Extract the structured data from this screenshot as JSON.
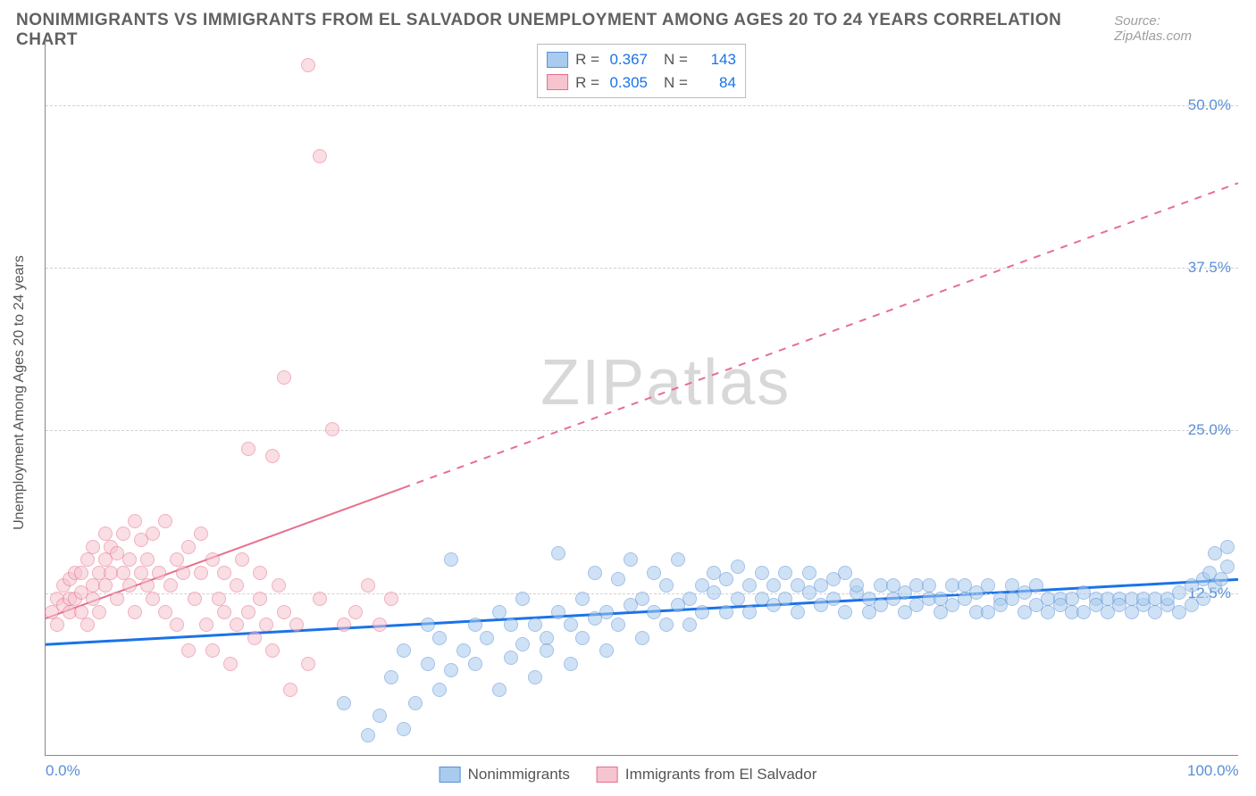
{
  "title": "NONIMMIGRANTS VS IMMIGRANTS FROM EL SALVADOR UNEMPLOYMENT AMONG AGES 20 TO 24 YEARS CORRELATION CHART",
  "source": "Source: ZipAtlas.com",
  "ylabel": "Unemployment Among Ages 20 to 24 years",
  "watermark": "ZIPatlas",
  "chart": {
    "type": "scatter",
    "xlim": [
      0,
      100
    ],
    "ylim": [
      0,
      55
    ],
    "xtick_labels": [
      {
        "pos": 0,
        "label": "0.0%"
      },
      {
        "pos": 100,
        "label": "100.0%"
      }
    ],
    "ytick_labels": [
      {
        "pos": 12.5,
        "label": "12.5%"
      },
      {
        "pos": 25.0,
        "label": "25.0%"
      },
      {
        "pos": 37.5,
        "label": "37.5%"
      },
      {
        "pos": 50.0,
        "label": "50.0%"
      }
    ],
    "grid_color": "#d0d0d0",
    "background_color": "#ffffff",
    "axis_color": "#888888",
    "point_radius": 8,
    "point_opacity": 0.55,
    "series": [
      {
        "name": "Nonimmigrants",
        "color_fill": "#a9cbed",
        "color_stroke": "#5a8fd6",
        "R": "0.367",
        "N": "143",
        "trend": {
          "x1": 0,
          "y1": 8.5,
          "x2": 100,
          "y2": 13.5,
          "solid_until_x": 100,
          "color": "#1a73e8",
          "width": 3
        },
        "points": [
          [
            25,
            4
          ],
          [
            27,
            1.5
          ],
          [
            28,
            3
          ],
          [
            29,
            6
          ],
          [
            30,
            2
          ],
          [
            30,
            8
          ],
          [
            31,
            4
          ],
          [
            32,
            7
          ],
          [
            32,
            10
          ],
          [
            33,
            5
          ],
          [
            33,
            9
          ],
          [
            34,
            6.5
          ],
          [
            34,
            15
          ],
          [
            35,
            8
          ],
          [
            36,
            10
          ],
          [
            36,
            7
          ],
          [
            37,
            9
          ],
          [
            38,
            5
          ],
          [
            38,
            11
          ],
          [
            39,
            7.5
          ],
          [
            39,
            10
          ],
          [
            40,
            8.5
          ],
          [
            40,
            12
          ],
          [
            41,
            6
          ],
          [
            41,
            10
          ],
          [
            42,
            9
          ],
          [
            42,
            8
          ],
          [
            43,
            11
          ],
          [
            43,
            15.5
          ],
          [
            44,
            10
          ],
          [
            44,
            7
          ],
          [
            45,
            9
          ],
          [
            45,
            12
          ],
          [
            46,
            10.5
          ],
          [
            46,
            14
          ],
          [
            47,
            11
          ],
          [
            47,
            8
          ],
          [
            48,
            10
          ],
          [
            48,
            13.5
          ],
          [
            49,
            11.5
          ],
          [
            49,
            15
          ],
          [
            50,
            12
          ],
          [
            50,
            9
          ],
          [
            51,
            11
          ],
          [
            51,
            14
          ],
          [
            52,
            10
          ],
          [
            52,
            13
          ],
          [
            53,
            11.5
          ],
          [
            53,
            15
          ],
          [
            54,
            12
          ],
          [
            54,
            10
          ],
          [
            55,
            13
          ],
          [
            55,
            11
          ],
          [
            56,
            12.5
          ],
          [
            56,
            14
          ],
          [
            57,
            11
          ],
          [
            57,
            13.5
          ],
          [
            58,
            12
          ],
          [
            58,
            14.5
          ],
          [
            59,
            11
          ],
          [
            59,
            13
          ],
          [
            60,
            12
          ],
          [
            60,
            14
          ],
          [
            61,
            11.5
          ],
          [
            61,
            13
          ],
          [
            62,
            12
          ],
          [
            62,
            14
          ],
          [
            63,
            13
          ],
          [
            63,
            11
          ],
          [
            64,
            12.5
          ],
          [
            64,
            14
          ],
          [
            65,
            13
          ],
          [
            65,
            11.5
          ],
          [
            66,
            12
          ],
          [
            66,
            13.5
          ],
          [
            67,
            11
          ],
          [
            67,
            14
          ],
          [
            68,
            12.5
          ],
          [
            68,
            13
          ],
          [
            69,
            11
          ],
          [
            69,
            12
          ],
          [
            70,
            13
          ],
          [
            70,
            11.5
          ],
          [
            71,
            12
          ],
          [
            71,
            13
          ],
          [
            72,
            11
          ],
          [
            72,
            12.5
          ],
          [
            73,
            13
          ],
          [
            73,
            11.5
          ],
          [
            74,
            12
          ],
          [
            74,
            13
          ],
          [
            75,
            11
          ],
          [
            75,
            12
          ],
          [
            76,
            13
          ],
          [
            76,
            11.5
          ],
          [
            77,
            12
          ],
          [
            77,
            13
          ],
          [
            78,
            11
          ],
          [
            78,
            12.5
          ],
          [
            79,
            13
          ],
          [
            79,
            11
          ],
          [
            80,
            12
          ],
          [
            80,
            11.5
          ],
          [
            81,
            13
          ],
          [
            81,
            12
          ],
          [
            82,
            11
          ],
          [
            82,
            12.5
          ],
          [
            83,
            11.5
          ],
          [
            83,
            13
          ],
          [
            84,
            12
          ],
          [
            84,
            11
          ],
          [
            85,
            12
          ],
          [
            85,
            11.5
          ],
          [
            86,
            12
          ],
          [
            86,
            11
          ],
          [
            87,
            12.5
          ],
          [
            87,
            11
          ],
          [
            88,
            12
          ],
          [
            88,
            11.5
          ],
          [
            89,
            12
          ],
          [
            89,
            11
          ],
          [
            90,
            12
          ],
          [
            90,
            11.5
          ],
          [
            91,
            12
          ],
          [
            91,
            11
          ],
          [
            92,
            11.5
          ],
          [
            92,
            12
          ],
          [
            93,
            11
          ],
          [
            93,
            12
          ],
          [
            94,
            11.5
          ],
          [
            94,
            12
          ],
          [
            95,
            11
          ],
          [
            95,
            12.5
          ],
          [
            96,
            11.5
          ],
          [
            96,
            13
          ],
          [
            97,
            12
          ],
          [
            97,
            13.5
          ],
          [
            97.5,
            14
          ],
          [
            98,
            13
          ],
          [
            98,
            15.5
          ],
          [
            98.5,
            13.5
          ],
          [
            99,
            14.5
          ],
          [
            99,
            16
          ]
        ]
      },
      {
        "name": "Immigrants from El Salvador",
        "color_fill": "#f5c4cf",
        "color_stroke": "#e76f8d",
        "R": "0.305",
        "N": "84",
        "trend": {
          "x1": 0,
          "y1": 10.5,
          "x2": 100,
          "y2": 44,
          "solid_until_x": 30,
          "color": "#e76f8d",
          "width": 2
        },
        "points": [
          [
            0.5,
            11
          ],
          [
            1,
            12
          ],
          [
            1,
            10
          ],
          [
            1.5,
            11.5
          ],
          [
            1.5,
            13
          ],
          [
            2,
            12
          ],
          [
            2,
            11
          ],
          [
            2,
            13.5
          ],
          [
            2.5,
            12
          ],
          [
            2.5,
            14
          ],
          [
            3,
            11
          ],
          [
            3,
            12.5
          ],
          [
            3,
            14
          ],
          [
            3.5,
            10
          ],
          [
            3.5,
            15
          ],
          [
            4,
            13
          ],
          [
            4,
            12
          ],
          [
            4,
            16
          ],
          [
            4.5,
            11
          ],
          [
            4.5,
            14
          ],
          [
            5,
            15
          ],
          [
            5,
            17
          ],
          [
            5,
            13
          ],
          [
            5.5,
            14
          ],
          [
            5.5,
            16
          ],
          [
            6,
            15.5
          ],
          [
            6,
            12
          ],
          [
            6.5,
            14
          ],
          [
            6.5,
            17
          ],
          [
            7,
            13
          ],
          [
            7,
            15
          ],
          [
            7.5,
            11
          ],
          [
            7.5,
            18
          ],
          [
            8,
            14
          ],
          [
            8,
            16.5
          ],
          [
            8.5,
            13
          ],
          [
            8.5,
            15
          ],
          [
            9,
            17
          ],
          [
            9,
            12
          ],
          [
            9.5,
            14
          ],
          [
            10,
            11
          ],
          [
            10,
            18
          ],
          [
            10.5,
            13
          ],
          [
            11,
            15
          ],
          [
            11,
            10
          ],
          [
            11.5,
            14
          ],
          [
            12,
            16
          ],
          [
            12,
            8
          ],
          [
            12.5,
            12
          ],
          [
            13,
            14
          ],
          [
            13,
            17
          ],
          [
            13.5,
            10
          ],
          [
            14,
            8
          ],
          [
            14,
            15
          ],
          [
            14.5,
            12
          ],
          [
            15,
            14
          ],
          [
            15,
            11
          ],
          [
            15.5,
            7
          ],
          [
            16,
            13
          ],
          [
            16,
            10
          ],
          [
            16.5,
            15
          ],
          [
            17,
            11
          ],
          [
            17,
            23.5
          ],
          [
            17.5,
            9
          ],
          [
            18,
            12
          ],
          [
            18,
            14
          ],
          [
            18.5,
            10
          ],
          [
            19,
            23
          ],
          [
            19,
            8
          ],
          [
            19.5,
            13
          ],
          [
            20,
            29
          ],
          [
            20,
            11
          ],
          [
            20.5,
            5
          ],
          [
            21,
            10
          ],
          [
            22,
            7
          ],
          [
            22,
            53
          ],
          [
            23,
            12
          ],
          [
            23,
            46
          ],
          [
            24,
            25
          ],
          [
            25,
            10
          ],
          [
            26,
            11
          ],
          [
            27,
            13
          ],
          [
            28,
            10
          ],
          [
            29,
            12
          ]
        ]
      }
    ]
  },
  "bottom_legend": [
    {
      "label": "Nonimmigrants",
      "fill": "#a9cbed",
      "stroke": "#5a8fd6"
    },
    {
      "label": "Immigrants from El Salvador",
      "fill": "#f5c4cf",
      "stroke": "#e76f8d"
    }
  ]
}
